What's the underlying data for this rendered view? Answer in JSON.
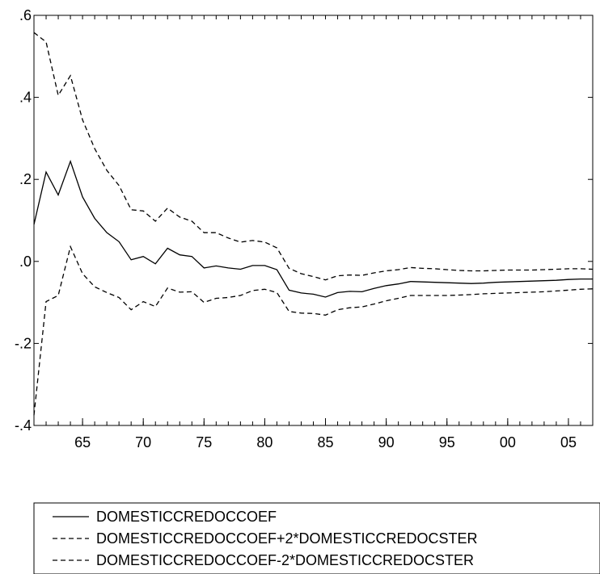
{
  "chart_data": {
    "type": "line",
    "title": "",
    "xlabel": "",
    "ylabel": "",
    "x": [
      1961,
      1962,
      1963,
      1964,
      1965,
      1966,
      1967,
      1968,
      1969,
      1970,
      1971,
      1972,
      1973,
      1974,
      1975,
      1976,
      1977,
      1978,
      1979,
      1980,
      1981,
      1982,
      1983,
      1984,
      1985,
      1986,
      1987,
      1988,
      1989,
      1990,
      1991,
      1992,
      1993,
      1994,
      1995,
      1996,
      1997,
      1998,
      1999,
      2000,
      2001,
      2002,
      2003,
      2004,
      2005,
      2006,
      2007
    ],
    "xlim": [
      1961,
      2007
    ],
    "ylim": [
      -0.4,
      0.6
    ],
    "x_ticks": [
      1965,
      1970,
      1975,
      1980,
      1985,
      1990,
      1995,
      2000,
      2005
    ],
    "x_tick_labels": [
      "65",
      "70",
      "75",
      "80",
      "85",
      "90",
      "95",
      "00",
      "05"
    ],
    "y_ticks": [
      0.6,
      0.4,
      0.2,
      0.0,
      -0.2,
      -0.4
    ],
    "y_tick_labels": [
      ".6",
      ".4",
      ".2",
      ".0",
      "-.2",
      "-.4"
    ],
    "grid": false,
    "legend_position": "bottom",
    "series": [
      {
        "name": "DOMESTICCREDOCCOEF",
        "style": "solid",
        "values": [
          0.09,
          0.218,
          0.162,
          0.244,
          0.157,
          0.105,
          0.07,
          0.048,
          0.004,
          0.012,
          -0.006,
          0.032,
          0.016,
          0.012,
          -0.016,
          -0.011,
          -0.016,
          -0.019,
          -0.01,
          -0.01,
          -0.02,
          -0.07,
          -0.077,
          -0.08,
          -0.087,
          -0.076,
          -0.073,
          -0.074,
          -0.066,
          -0.059,
          -0.055,
          -0.049,
          -0.05,
          -0.051,
          -0.052,
          -0.053,
          -0.054,
          -0.053,
          -0.051,
          -0.05,
          -0.049,
          -0.048,
          -0.047,
          -0.046,
          -0.044,
          -0.043,
          -0.043
        ]
      },
      {
        "name": "DOMESTICCREDOCCOEF+2*DOMESTICCREDOCSTER",
        "style": "dashed",
        "values": [
          0.558,
          0.535,
          0.405,
          0.453,
          0.345,
          0.275,
          0.222,
          0.185,
          0.126,
          0.123,
          0.098,
          0.13,
          0.108,
          0.098,
          0.07,
          0.07,
          0.057,
          0.047,
          0.051,
          0.047,
          0.033,
          -0.017,
          -0.03,
          -0.037,
          -0.045,
          -0.035,
          -0.033,
          -0.034,
          -0.028,
          -0.023,
          -0.02,
          -0.015,
          -0.017,
          -0.018,
          -0.02,
          -0.022,
          -0.023,
          -0.023,
          -0.022,
          -0.021,
          -0.021,
          -0.021,
          -0.02,
          -0.019,
          -0.018,
          -0.018,
          -0.019
        ]
      },
      {
        "name": "DOMESTICCREDOCCOEF-2*DOMESTICCREDOCSTER",
        "style": "dashed",
        "values": [
          -0.375,
          -0.098,
          -0.083,
          0.036,
          -0.03,
          -0.062,
          -0.076,
          -0.088,
          -0.118,
          -0.098,
          -0.11,
          -0.065,
          -0.075,
          -0.074,
          -0.1,
          -0.09,
          -0.088,
          -0.083,
          -0.071,
          -0.068,
          -0.076,
          -0.122,
          -0.126,
          -0.127,
          -0.131,
          -0.118,
          -0.113,
          -0.111,
          -0.104,
          -0.096,
          -0.09,
          -0.083,
          -0.083,
          -0.083,
          -0.083,
          -0.082,
          -0.081,
          -0.079,
          -0.078,
          -0.077,
          -0.076,
          -0.075,
          -0.074,
          -0.072,
          -0.07,
          -0.068,
          -0.067
        ]
      }
    ]
  }
}
